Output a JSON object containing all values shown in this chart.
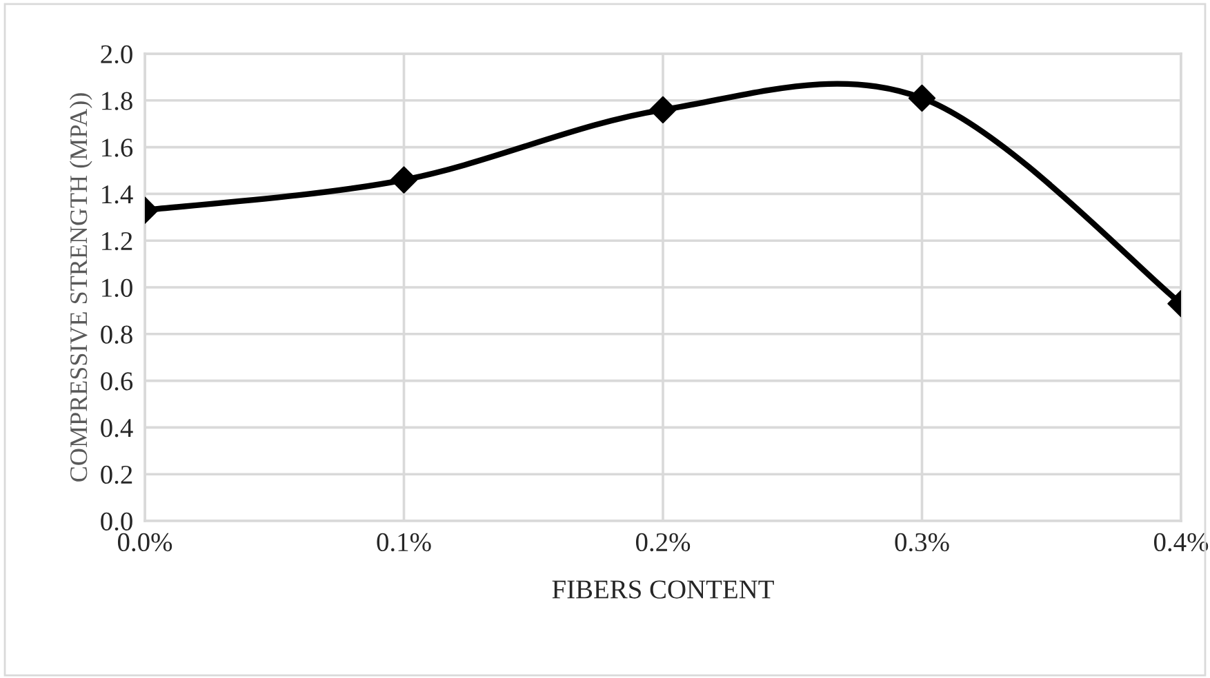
{
  "chart_data": {
    "type": "line",
    "xlabel": "FIBERS CONTENT",
    "ylabel": "COMPRESSIVE STRENGTH (MPA))",
    "categories": [
      "0.0%",
      "0.1%",
      "0.2%",
      "0.3%",
      "0.4%"
    ],
    "series": [
      {
        "color": "#000000",
        "values": [
          1.33,
          1.46,
          1.76,
          1.81,
          0.93
        ]
      }
    ],
    "ylim": [
      0,
      2.0
    ],
    "yticks": [
      {
        "value": 0,
        "label": "0.0"
      },
      {
        "value": 0.2,
        "label": "0.2"
      },
      {
        "value": 0.4,
        "label": "0.4"
      },
      {
        "value": 0.6,
        "label": "0.6"
      },
      {
        "value": 0.8,
        "label": "0.8"
      },
      {
        "value": 1.0,
        "label": "1.0"
      },
      {
        "value": 1.2,
        "label": "1.2"
      },
      {
        "value": 1.4,
        "label": "1.4"
      },
      {
        "value": 1.6,
        "label": "1.6"
      },
      {
        "value": 1.8,
        "label": "1.8"
      },
      {
        "value": 2.0,
        "label": "2.0"
      }
    ],
    "grid": true,
    "marker": "diamond",
    "line_style": "solid"
  }
}
